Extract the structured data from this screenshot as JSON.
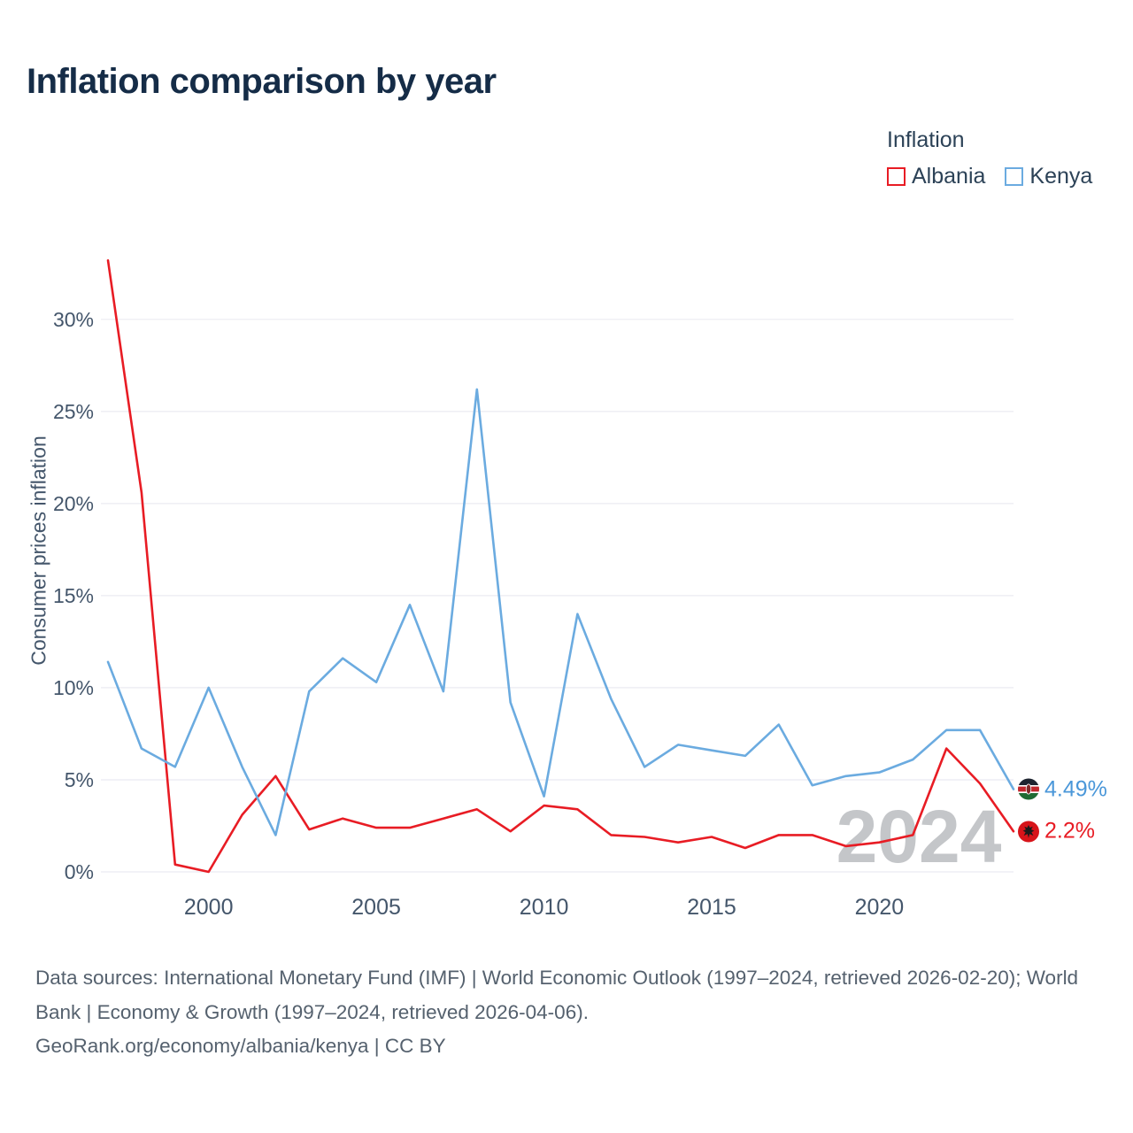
{
  "title": "Inflation comparison by year",
  "legend": {
    "title": "Inflation",
    "series": [
      {
        "label": "Albania",
        "color": "#e81c24"
      },
      {
        "label": "Kenya",
        "color": "#6babe0"
      }
    ]
  },
  "chart_data": {
    "type": "line",
    "title": "Inflation comparison by year",
    "xlabel": "",
    "ylabel": "Consumer prices inflation",
    "x": [
      1997,
      1998,
      1999,
      2000,
      2001,
      2002,
      2003,
      2004,
      2005,
      2006,
      2007,
      2008,
      2009,
      2010,
      2011,
      2012,
      2013,
      2014,
      2015,
      2016,
      2017,
      2018,
      2019,
      2020,
      2021,
      2022,
      2023,
      2024
    ],
    "series": [
      {
        "name": "Albania",
        "color": "#e81c24",
        "values": [
          33.2,
          20.6,
          0.4,
          0.0,
          3.1,
          5.2,
          2.3,
          2.9,
          2.4,
          2.4,
          2.9,
          3.4,
          2.2,
          3.6,
          3.4,
          2.0,
          1.9,
          1.6,
          1.9,
          1.3,
          2.0,
          2.0,
          1.4,
          1.6,
          2.0,
          6.7,
          4.8,
          2.2
        ]
      },
      {
        "name": "Kenya",
        "color": "#6babe0",
        "values": [
          11.4,
          6.7,
          5.7,
          10.0,
          5.7,
          2.0,
          9.8,
          11.6,
          10.3,
          14.5,
          9.8,
          26.2,
          9.2,
          4.1,
          14.0,
          9.4,
          5.7,
          6.9,
          6.6,
          6.3,
          8.0,
          4.7,
          5.2,
          5.4,
          6.1,
          7.7,
          7.7,
          4.49
        ]
      }
    ],
    "yticks": [
      0,
      5,
      10,
      15,
      20,
      25,
      30
    ],
    "ytick_suffix": "%",
    "xticks": [
      2000,
      2005,
      2010,
      2015,
      2020
    ],
    "ylim": [
      0,
      33.5
    ],
    "grid": true,
    "legend_position": "top-right",
    "watermark": "2024"
  },
  "end_labels": [
    {
      "series": "Kenya",
      "value": "4.49%",
      "y_value": 4.49,
      "color": "#4a97d9"
    },
    {
      "series": "Albania",
      "value": "2.2%",
      "y_value": 2.2,
      "color": "#e81c24"
    }
  ],
  "footer": {
    "sources": "Data sources: International Monetary Fund (IMF) | World Economic Outlook (1997–2024, retrieved 2026-02-20); World Bank | Economy & Growth (1997–2024, retrieved 2026-04-06).",
    "attribution": "GeoRank.org/economy/albania/kenya | CC BY"
  }
}
